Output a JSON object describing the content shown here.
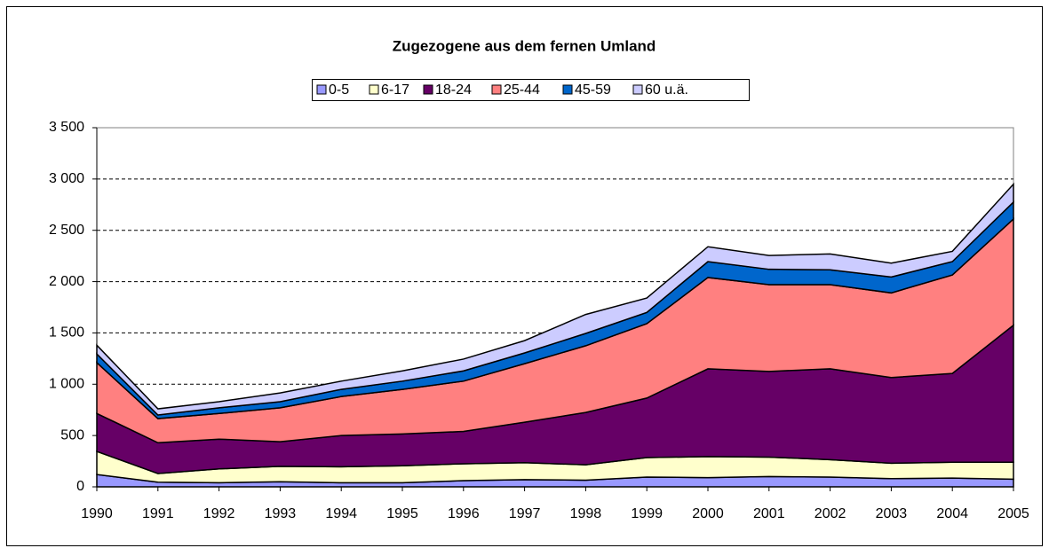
{
  "chart_data": {
    "type": "stacked_area",
    "title": "Zugezogene aus dem fernen Umland",
    "categories": [
      "1990",
      "1991",
      "1992",
      "1993",
      "1994",
      "1995",
      "1996",
      "1997",
      "1998",
      "1999",
      "2000",
      "2001",
      "2002",
      "2003",
      "2004",
      "2005"
    ],
    "series": [
      {
        "name": "0-5",
        "color": "#9999ff",
        "values": [
          120,
          45,
          40,
          50,
          40,
          40,
          60,
          70,
          65,
          95,
          90,
          100,
          95,
          80,
          85,
          75
        ]
      },
      {
        "name": "6-17",
        "color": "#ffffcc",
        "values": [
          225,
          85,
          135,
          150,
          155,
          165,
          165,
          165,
          150,
          190,
          205,
          190,
          170,
          150,
          155,
          165
        ]
      },
      {
        "name": "18-24",
        "color": "#660066",
        "values": [
          370,
          300,
          290,
          240,
          305,
          310,
          315,
          395,
          510,
          580,
          855,
          835,
          885,
          835,
          865,
          1335
        ]
      },
      {
        "name": "25-44",
        "color": "#ff8080",
        "values": [
          495,
          235,
          250,
          330,
          380,
          435,
          490,
          570,
          650,
          725,
          890,
          845,
          820,
          825,
          960,
          1035
        ]
      },
      {
        "name": "45-59",
        "color": "#0066cc",
        "values": [
          85,
          35,
          55,
          60,
          70,
          80,
          100,
          105,
          120,
          110,
          155,
          150,
          145,
          155,
          130,
          165
        ]
      },
      {
        "name": "60 u.ä.",
        "color": "#ccccff",
        "values": [
          85,
          60,
          60,
          85,
          80,
          100,
          115,
          120,
          185,
          140,
          145,
          135,
          155,
          135,
          100,
          175
        ]
      }
    ],
    "ylim": [
      0,
      3500
    ],
    "yticks": [
      0,
      500,
      {
        "value": 1000,
        "label": "1 000"
      },
      {
        "value": 1500,
        "label": "1 500"
      },
      {
        "value": 2000,
        "label": "2 000"
      },
      {
        "value": 2500,
        "label": "2 500"
      },
      {
        "value": 3000,
        "label": "3 000"
      },
      {
        "value": 3500,
        "label": "3 500"
      }
    ],
    "grid": true,
    "legend": "top"
  }
}
